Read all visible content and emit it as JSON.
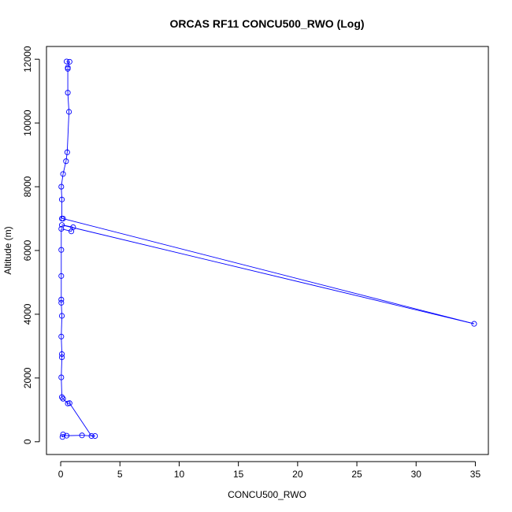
{
  "chart_data": {
    "type": "line",
    "title": "ORCAS RF11 CONCU500_RWO (Log)",
    "xlabel": "CONCU500_RWO",
    "ylabel": "Altitude (m)",
    "xlim": [
      -1.2,
      36.1
    ],
    "ylim": [
      -400,
      12400
    ],
    "xticks": [
      0,
      5,
      10,
      15,
      20,
      25,
      30,
      35
    ],
    "yticks": [
      0,
      2000,
      4000,
      6000,
      8000,
      10000,
      12000
    ],
    "grid": false,
    "legend": "none",
    "series": [
      {
        "color": "#0000ff",
        "marker": "open-circle",
        "points": [
          {
            "x": 0.5,
            "y": 11930
          },
          {
            "x": 0.75,
            "y": 11920
          },
          {
            "x": 0.6,
            "y": 11740
          },
          {
            "x": 0.6,
            "y": 11700
          },
          {
            "x": 0.6,
            "y": 10950
          },
          {
            "x": 0.7,
            "y": 10350
          },
          {
            "x": 0.55,
            "y": 9080
          },
          {
            "x": 0.45,
            "y": 8800
          },
          {
            "x": 0.2,
            "y": 8400
          },
          {
            "x": 0.05,
            "y": 8000
          },
          {
            "x": 0.1,
            "y": 7600
          },
          {
            "x": 0.1,
            "y": 7000
          },
          {
            "x": 0.2,
            "y": 7000
          },
          {
            "x": 34.9,
            "y": 3700
          },
          {
            "x": 0.1,
            "y": 6800
          },
          {
            "x": 1.05,
            "y": 6730
          },
          {
            "x": 0.9,
            "y": 6600
          },
          {
            "x": 0.05,
            "y": 6680
          },
          {
            "x": 0.05,
            "y": 6020
          },
          {
            "x": 0.05,
            "y": 5200
          },
          {
            "x": 0.05,
            "y": 4460
          },
          {
            "x": 0.05,
            "y": 4360
          },
          {
            "x": 0.1,
            "y": 3950
          },
          {
            "x": 0.05,
            "y": 3300
          },
          {
            "x": 0.1,
            "y": 2750
          },
          {
            "x": 0.1,
            "y": 2650
          },
          {
            "x": 0.05,
            "y": 2020
          },
          {
            "x": 0.1,
            "y": 1400
          },
          {
            "x": 0.2,
            "y": 1350
          },
          {
            "x": 0.6,
            "y": 1200
          },
          {
            "x": 0.75,
            "y": 1210
          },
          {
            "x": 2.6,
            "y": 180
          },
          {
            "x": 2.9,
            "y": 180
          },
          {
            "x": 1.8,
            "y": 200
          },
          {
            "x": 0.5,
            "y": 190
          },
          {
            "x": 0.2,
            "y": 230
          },
          {
            "x": 0.15,
            "y": 150
          }
        ]
      }
    ]
  }
}
